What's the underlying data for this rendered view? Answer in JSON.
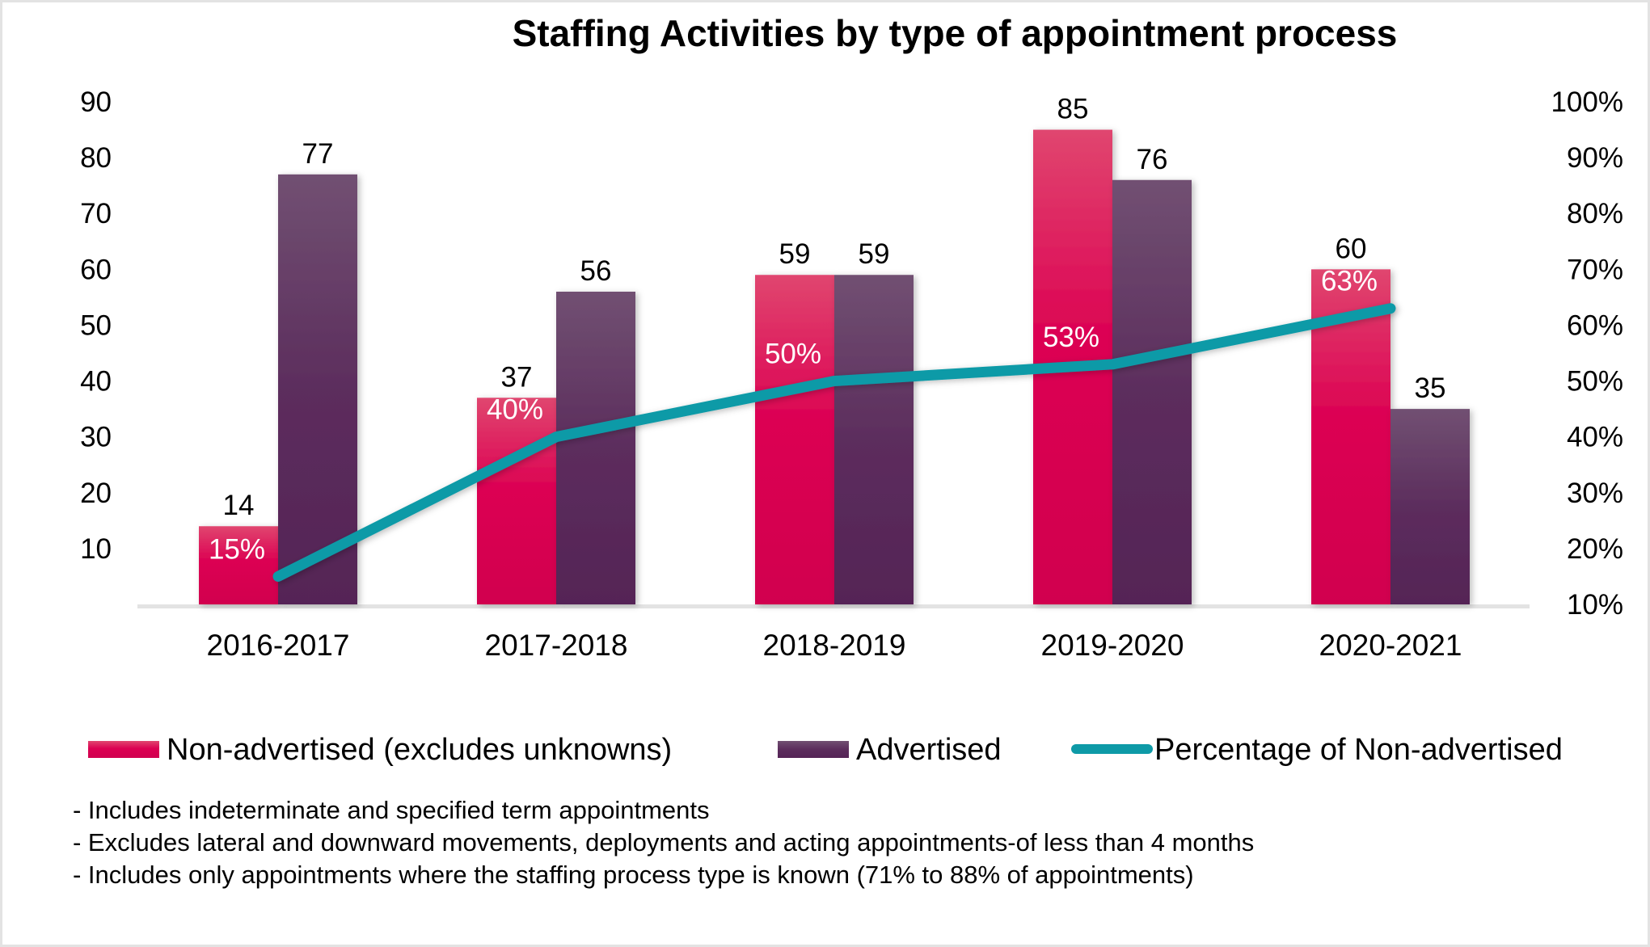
{
  "chart_data": {
    "type": "bar",
    "title": "Staffing Activities  by type of appointment process",
    "categories": [
      "2016-2017",
      "2017-2018",
      "2018-2019",
      "2019-2020",
      "2020-2021"
    ],
    "series": [
      {
        "name": "Non-advertised (excludes unknowns)",
        "type": "bar",
        "axis": "left",
        "values": [
          14,
          37,
          59,
          85,
          60
        ],
        "color_top": "#e0466f",
        "color_bottom": "#d1004f"
      },
      {
        "name": "Advertised",
        "type": "bar",
        "axis": "left",
        "values": [
          77,
          56,
          59,
          76,
          35
        ],
        "color_top": "#715072",
        "color_bottom": "#552456"
      },
      {
        "name": "Percentage of Non-advertised",
        "type": "line",
        "axis": "right",
        "values": [
          15,
          40,
          50,
          53,
          63
        ],
        "labels": [
          "15%",
          "40%",
          "50%",
          "53%",
          "63%"
        ],
        "color": "#0e9aa7"
      }
    ],
    "left_axis": {
      "ylim": [
        0,
        90
      ],
      "ticks": [
        10,
        20,
        30,
        40,
        50,
        60,
        70,
        80,
        90
      ],
      "tick_labels": [
        "10",
        "20",
        "30",
        "40",
        "50",
        "60",
        "70",
        "80",
        "90"
      ]
    },
    "right_axis": {
      "ylim": [
        10,
        100
      ],
      "ticks": [
        10,
        20,
        30,
        40,
        50,
        60,
        70,
        80,
        90,
        100
      ],
      "tick_labels": [
        "10%",
        "20%",
        "30%",
        "40%",
        "50%",
        "60%",
        "70%",
        "80%",
        "90%",
        "100%"
      ]
    },
    "xlabel": "",
    "ylabel": "",
    "grid": false,
    "legend_position": "bottom",
    "notes": [
      "- Includes indeterminate and specified term appointments",
      "- Excludes lateral and downward movements, deployments and acting appointments-of less than 4 months",
      "- Includes only appointments where the staffing process type is known (71% to 88% of appointments)"
    ]
  }
}
